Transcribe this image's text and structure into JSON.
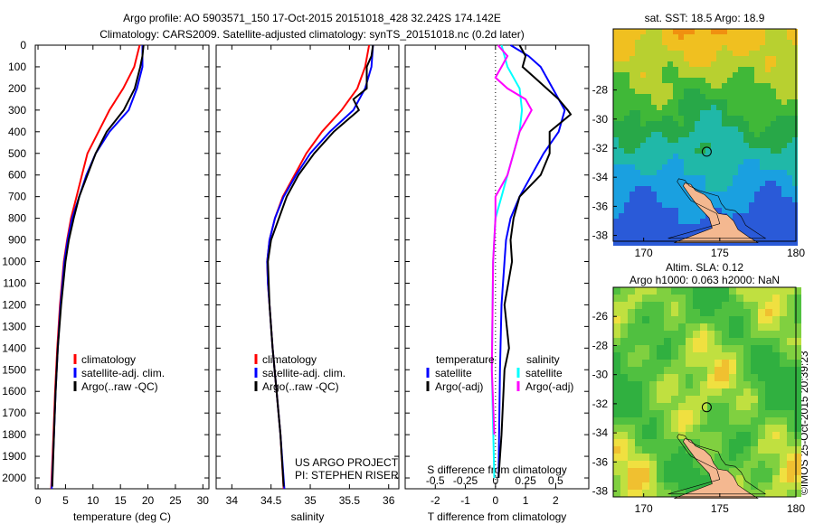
{
  "title_line1": "Argo profile: AO 5903571_150 17-Oct-2015 20151018_428 32.242S 174.142E",
  "title_line2": "Climatology: CARS2009. Satellite-adjusted climatology: synTS_20151018.nc (0.2d later)",
  "credit": "©IMOS 25-Oct-2015 20:39:23",
  "colors": {
    "climatology": "#ff0000",
    "satellite": "#0000ff",
    "argo": "#000000",
    "sal_satellite": "#00ffff",
    "sal_argo": "#ff00ff"
  },
  "chart_data": [
    {
      "type": "line",
      "xlabel": "temperature (deg C)",
      "ylabel": "depth",
      "xlim": [
        -0.5,
        31.1
      ],
      "ylim": [
        0,
        2050
      ],
      "xticks": [
        0,
        5,
        10,
        15,
        20,
        25,
        30
      ],
      "yticks": [
        0,
        100,
        200,
        300,
        400,
        500,
        600,
        700,
        800,
        900,
        1000,
        1100,
        1200,
        1300,
        1400,
        1500,
        1600,
        1700,
        1800,
        1900,
        2000
      ],
      "legend": [
        "climatology",
        "satellite-adj. clim.",
        "Argo(..raw -QC)"
      ],
      "series": [
        {
          "name": "climatology",
          "color": "#ff0000",
          "depth": [
            0,
            100,
            200,
            300,
            400,
            500,
            600,
            700,
            800,
            900,
            1000,
            1200,
            1400,
            1600,
            1800,
            2050
          ],
          "values": [
            18.5,
            17.5,
            15.5,
            13,
            11,
            9,
            8,
            7,
            6,
            5.3,
            4.7,
            4,
            3.5,
            3.1,
            2.8,
            2.4
          ]
        },
        {
          "name": "satellite-adj. clim.",
          "color": "#0000ff",
          "depth": [
            0,
            100,
            200,
            300,
            400,
            500,
            600,
            700,
            800,
            900,
            1000,
            1200,
            1400,
            1600,
            1800,
            2050
          ],
          "values": [
            19,
            19,
            18,
            16.5,
            13,
            10.5,
            8.8,
            7.5,
            6.2,
            5.4,
            4.8,
            4.1,
            3.6,
            3.2,
            2.9,
            2.5
          ]
        },
        {
          "name": "Argo(..raw -QC)",
          "color": "#000000",
          "depth": [
            0,
            50,
            100,
            200,
            300,
            400,
            500,
            600,
            700,
            800,
            900,
            1000,
            1200,
            1400,
            1600,
            1800,
            2040
          ],
          "values": [
            19.2,
            19,
            18.6,
            17.6,
            15.6,
            12.5,
            10.5,
            9,
            7.5,
            6.5,
            5.6,
            5,
            4.2,
            3.6,
            3.2,
            2.9,
            2.6
          ]
        }
      ]
    },
    {
      "type": "line",
      "xlabel": "salinity",
      "xlim": [
        33.8,
        36.13
      ],
      "ylim": [
        0,
        2050
      ],
      "xticks": [
        34,
        34.5,
        35,
        35.5,
        36
      ],
      "legend": [
        "climatology",
        "satellite-adj. clim.",
        "Argo(..raw -QC)"
      ],
      "annotation": [
        "US ARGO PROJECT",
        "PI: STEPHEN RISER"
      ],
      "series": [
        {
          "name": "climatology",
          "color": "#ff0000",
          "depth": [
            0,
            100,
            200,
            300,
            400,
            500,
            600,
            700,
            800,
            900,
            1000,
            1100,
            1200,
            1400,
            1600,
            1800,
            2050
          ],
          "values": [
            35.75,
            35.7,
            35.6,
            35.4,
            35.15,
            34.95,
            34.8,
            34.65,
            34.55,
            34.48,
            34.45,
            34.46,
            34.48,
            34.52,
            34.57,
            34.62,
            34.66
          ]
        },
        {
          "name": "satellite-adj. clim.",
          "color": "#0000ff",
          "depth": [
            0,
            100,
            200,
            300,
            400,
            500,
            600,
            700,
            800,
            900,
            1000,
            1100,
            1200,
            1400,
            1600,
            1800,
            2050
          ],
          "values": [
            35.8,
            35.78,
            35.7,
            35.55,
            35.25,
            35,
            34.82,
            34.66,
            34.55,
            34.48,
            34.45,
            34.46,
            34.48,
            34.52,
            34.57,
            34.62,
            34.67
          ]
        },
        {
          "name": "Argo(..raw -QC)",
          "color": "#000000",
          "depth": [
            0,
            50,
            100,
            200,
            250,
            300,
            400,
            500,
            600,
            700,
            800,
            900,
            1000,
            1200,
            1400,
            1600,
            1800,
            2040
          ],
          "values": [
            35.8,
            35.78,
            35.72,
            35.72,
            35.55,
            35.62,
            35.3,
            35.05,
            34.85,
            34.7,
            34.6,
            34.5,
            34.46,
            34.48,
            34.52,
            34.57,
            34.62,
            34.66
          ]
        }
      ]
    },
    {
      "type": "line",
      "xlabel": "T difference from climatology",
      "xlabel2": "S difference from climatology",
      "xlim": [
        -3,
        3.1
      ],
      "ylim": [
        0,
        2050
      ],
      "xticks": [
        -2,
        -1,
        0,
        1,
        2
      ],
      "xticks2": [
        "-0.5",
        "-0.25",
        "0",
        "0.25",
        "0.5"
      ],
      "legend_titles": [
        "temperature",
        "salinity"
      ],
      "legend": [
        "satellite",
        "Argo(-adj)",
        "satellite",
        "Argo(-adj)"
      ],
      "series": [
        {
          "name": "temperature satellite",
          "color": "#0000ff",
          "depth": [
            0,
            50,
            100,
            200,
            300,
            400,
            500,
            600,
            700,
            800,
            900,
            1000,
            1200,
            1500,
            2000
          ],
          "values": [
            0.5,
            1.1,
            1.5,
            1.9,
            2.3,
            2.1,
            1.6,
            1.2,
            0.8,
            0.5,
            0.35,
            0.3,
            0.2,
            0.15,
            0.1
          ]
        },
        {
          "name": "temperature Argo(-adj)",
          "color": "#000000",
          "depth": [
            0,
            50,
            100,
            150,
            200,
            250,
            300,
            320,
            400,
            500,
            600,
            700,
            800,
            900,
            1000,
            1200,
            1400,
            1500,
            1800,
            2000
          ],
          "values": [
            0.8,
            1.0,
            0.9,
            1.3,
            1.7,
            2.1,
            2.4,
            2.5,
            1.8,
            1.8,
            1.5,
            0.8,
            0.6,
            0.5,
            0.55,
            0.3,
            0.45,
            0.3,
            0.2,
            0.1
          ]
        },
        {
          "name": "salinity satellite",
          "color": "#00ffff",
          "depth": [
            0,
            100,
            200,
            300,
            400,
            500,
            600,
            700,
            800,
            1000,
            1500,
            2000
          ],
          "values": [
            0.05,
            0.1,
            0.2,
            0.22,
            0.2,
            0.15,
            0.1,
            0.05,
            0,
            -0.02,
            -0.03,
            -0.01
          ]
        },
        {
          "name": "salinity Argo(-adj)",
          "color": "#ff00ff",
          "depth": [
            0,
            50,
            100,
            150,
            200,
            250,
            300,
            400,
            500,
            600,
            700,
            800,
            1000,
            1500,
            1800
          ],
          "values": [
            0.02,
            0.1,
            0.05,
            0,
            0.1,
            0.25,
            0.3,
            0.2,
            0.15,
            0.1,
            0,
            0,
            -0.02,
            -0.03,
            -0.01
          ]
        }
      ]
    },
    {
      "type": "heatmap",
      "title": "sat. SST: 18.5 Argo: 18.9",
      "xlim": [
        168,
        180
      ],
      "ylim": [
        -38.4,
        -23.8
      ],
      "xticks": [
        170,
        175,
        180
      ],
      "yticks": [
        -28,
        -30,
        -32,
        -34,
        -36,
        -38
      ],
      "argo_position": [
        174.142,
        -32.242
      ]
    },
    {
      "type": "heatmap",
      "title": "Altim. SLA: 0.12",
      "subtitle": "Argo h1000: 0.063 h2000: NaN",
      "xlim": [
        168,
        180
      ],
      "ylim": [
        -38.4,
        -24
      ],
      "xticks": [
        170,
        175,
        180
      ],
      "yticks": [
        -26,
        -28,
        -30,
        -32,
        -34,
        -36,
        -38
      ],
      "argo_position": [
        174.142,
        -32.242
      ]
    }
  ]
}
